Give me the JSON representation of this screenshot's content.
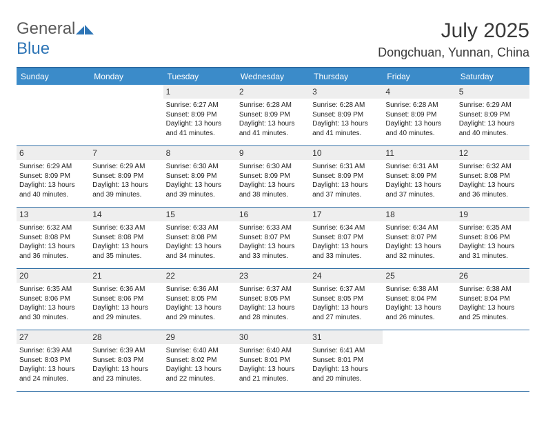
{
  "logo": {
    "part1": "General",
    "part2": "Blue"
  },
  "title": "July 2025",
  "location": "Dongchuan, Yunnan, China",
  "colors": {
    "headerBar": "#3b8bc9",
    "border": "#2e6da4",
    "dayBg": "#eeeeee",
    "text": "#3a3a3a"
  },
  "weekdays": [
    "Sunday",
    "Monday",
    "Tuesday",
    "Wednesday",
    "Thursday",
    "Friday",
    "Saturday"
  ],
  "weeks": [
    [
      {
        "day": "",
        "sunrise": "",
        "sunset": "",
        "daylight": ""
      },
      {
        "day": "",
        "sunrise": "",
        "sunset": "",
        "daylight": ""
      },
      {
        "day": "1",
        "sunrise": "Sunrise: 6:27 AM",
        "sunset": "Sunset: 8:09 PM",
        "daylight": "Daylight: 13 hours and 41 minutes."
      },
      {
        "day": "2",
        "sunrise": "Sunrise: 6:28 AM",
        "sunset": "Sunset: 8:09 PM",
        "daylight": "Daylight: 13 hours and 41 minutes."
      },
      {
        "day": "3",
        "sunrise": "Sunrise: 6:28 AM",
        "sunset": "Sunset: 8:09 PM",
        "daylight": "Daylight: 13 hours and 41 minutes."
      },
      {
        "day": "4",
        "sunrise": "Sunrise: 6:28 AM",
        "sunset": "Sunset: 8:09 PM",
        "daylight": "Daylight: 13 hours and 40 minutes."
      },
      {
        "day": "5",
        "sunrise": "Sunrise: 6:29 AM",
        "sunset": "Sunset: 8:09 PM",
        "daylight": "Daylight: 13 hours and 40 minutes."
      }
    ],
    [
      {
        "day": "6",
        "sunrise": "Sunrise: 6:29 AM",
        "sunset": "Sunset: 8:09 PM",
        "daylight": "Daylight: 13 hours and 40 minutes."
      },
      {
        "day": "7",
        "sunrise": "Sunrise: 6:29 AM",
        "sunset": "Sunset: 8:09 PM",
        "daylight": "Daylight: 13 hours and 39 minutes."
      },
      {
        "day": "8",
        "sunrise": "Sunrise: 6:30 AM",
        "sunset": "Sunset: 8:09 PM",
        "daylight": "Daylight: 13 hours and 39 minutes."
      },
      {
        "day": "9",
        "sunrise": "Sunrise: 6:30 AM",
        "sunset": "Sunset: 8:09 PM",
        "daylight": "Daylight: 13 hours and 38 minutes."
      },
      {
        "day": "10",
        "sunrise": "Sunrise: 6:31 AM",
        "sunset": "Sunset: 8:09 PM",
        "daylight": "Daylight: 13 hours and 37 minutes."
      },
      {
        "day": "11",
        "sunrise": "Sunrise: 6:31 AM",
        "sunset": "Sunset: 8:09 PM",
        "daylight": "Daylight: 13 hours and 37 minutes."
      },
      {
        "day": "12",
        "sunrise": "Sunrise: 6:32 AM",
        "sunset": "Sunset: 8:08 PM",
        "daylight": "Daylight: 13 hours and 36 minutes."
      }
    ],
    [
      {
        "day": "13",
        "sunrise": "Sunrise: 6:32 AM",
        "sunset": "Sunset: 8:08 PM",
        "daylight": "Daylight: 13 hours and 36 minutes."
      },
      {
        "day": "14",
        "sunrise": "Sunrise: 6:33 AM",
        "sunset": "Sunset: 8:08 PM",
        "daylight": "Daylight: 13 hours and 35 minutes."
      },
      {
        "day": "15",
        "sunrise": "Sunrise: 6:33 AM",
        "sunset": "Sunset: 8:08 PM",
        "daylight": "Daylight: 13 hours and 34 minutes."
      },
      {
        "day": "16",
        "sunrise": "Sunrise: 6:33 AM",
        "sunset": "Sunset: 8:07 PM",
        "daylight": "Daylight: 13 hours and 33 minutes."
      },
      {
        "day": "17",
        "sunrise": "Sunrise: 6:34 AM",
        "sunset": "Sunset: 8:07 PM",
        "daylight": "Daylight: 13 hours and 33 minutes."
      },
      {
        "day": "18",
        "sunrise": "Sunrise: 6:34 AM",
        "sunset": "Sunset: 8:07 PM",
        "daylight": "Daylight: 13 hours and 32 minutes."
      },
      {
        "day": "19",
        "sunrise": "Sunrise: 6:35 AM",
        "sunset": "Sunset: 8:06 PM",
        "daylight": "Daylight: 13 hours and 31 minutes."
      }
    ],
    [
      {
        "day": "20",
        "sunrise": "Sunrise: 6:35 AM",
        "sunset": "Sunset: 8:06 PM",
        "daylight": "Daylight: 13 hours and 30 minutes."
      },
      {
        "day": "21",
        "sunrise": "Sunrise: 6:36 AM",
        "sunset": "Sunset: 8:06 PM",
        "daylight": "Daylight: 13 hours and 29 minutes."
      },
      {
        "day": "22",
        "sunrise": "Sunrise: 6:36 AM",
        "sunset": "Sunset: 8:05 PM",
        "daylight": "Daylight: 13 hours and 29 minutes."
      },
      {
        "day": "23",
        "sunrise": "Sunrise: 6:37 AM",
        "sunset": "Sunset: 8:05 PM",
        "daylight": "Daylight: 13 hours and 28 minutes."
      },
      {
        "day": "24",
        "sunrise": "Sunrise: 6:37 AM",
        "sunset": "Sunset: 8:05 PM",
        "daylight": "Daylight: 13 hours and 27 minutes."
      },
      {
        "day": "25",
        "sunrise": "Sunrise: 6:38 AM",
        "sunset": "Sunset: 8:04 PM",
        "daylight": "Daylight: 13 hours and 26 minutes."
      },
      {
        "day": "26",
        "sunrise": "Sunrise: 6:38 AM",
        "sunset": "Sunset: 8:04 PM",
        "daylight": "Daylight: 13 hours and 25 minutes."
      }
    ],
    [
      {
        "day": "27",
        "sunrise": "Sunrise: 6:39 AM",
        "sunset": "Sunset: 8:03 PM",
        "daylight": "Daylight: 13 hours and 24 minutes."
      },
      {
        "day": "28",
        "sunrise": "Sunrise: 6:39 AM",
        "sunset": "Sunset: 8:03 PM",
        "daylight": "Daylight: 13 hours and 23 minutes."
      },
      {
        "day": "29",
        "sunrise": "Sunrise: 6:40 AM",
        "sunset": "Sunset: 8:02 PM",
        "daylight": "Daylight: 13 hours and 22 minutes."
      },
      {
        "day": "30",
        "sunrise": "Sunrise: 6:40 AM",
        "sunset": "Sunset: 8:01 PM",
        "daylight": "Daylight: 13 hours and 21 minutes."
      },
      {
        "day": "31",
        "sunrise": "Sunrise: 6:41 AM",
        "sunset": "Sunset: 8:01 PM",
        "daylight": "Daylight: 13 hours and 20 minutes."
      },
      {
        "day": "",
        "sunrise": "",
        "sunset": "",
        "daylight": ""
      },
      {
        "day": "",
        "sunrise": "",
        "sunset": "",
        "daylight": ""
      }
    ]
  ]
}
